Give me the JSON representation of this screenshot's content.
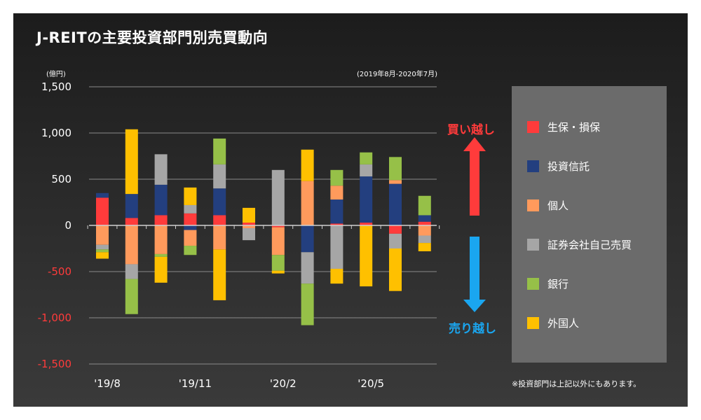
{
  "title": "J-REITの主要投資部門別売買動向",
  "unit": "(億円)",
  "period": "(2019年8月-2020年7月)",
  "buy_label": "買い越し",
  "sell_label": "売り越し",
  "note": "※投資部門は上記以外にもあります。",
  "colors": {
    "positive_tick": "#ffffff",
    "negative_tick": "#ff3b3b",
    "buy_arrow": "#ff3b3b",
    "sell_arrow": "#1aa6f0"
  },
  "legend": [
    {
      "label": "生保・損保",
      "color": "#ff3b3b"
    },
    {
      "label": "投資信託",
      "color": "#233f7f"
    },
    {
      "label": "個人",
      "color": "#ff9a5c"
    },
    {
      "label": "証券会社自己売買",
      "color": "#a6a6a6"
    },
    {
      "label": "銀行",
      "color": "#96c048"
    },
    {
      "label": "外国人",
      "color": "#ffc000"
    }
  ],
  "chart_data": {
    "type": "bar",
    "stacked": true,
    "x_tick_labels": [
      "'19/8",
      "'19/11",
      "'20/2",
      "'20/5"
    ],
    "x_tick_index": [
      0,
      3,
      6,
      9
    ],
    "y_ticks": [
      "1,500",
      "1,000",
      "500",
      "0",
      "-500",
      "-1,000",
      "-1,500"
    ],
    "ylim": [
      -1500,
      1500
    ],
    "grid": true,
    "legend_position": "right",
    "categories": [
      "2019/8",
      "2019/9",
      "2019/10",
      "2019/11",
      "2019/12",
      "2020/1",
      "2020/2",
      "2020/3",
      "2020/4",
      "2020/5",
      "2020/6",
      "2020/7"
    ],
    "series": [
      {
        "name": "生保・損保",
        "values": [
          300,
          80,
          110,
          130,
          110,
          30,
          -20,
          0,
          20,
          30,
          -90,
          40
        ]
      },
      {
        "name": "投資信託",
        "values": [
          50,
          260,
          330,
          -50,
          290,
          0,
          0,
          -290,
          260,
          500,
          450,
          70
        ]
      },
      {
        "name": "個人",
        "values": [
          -210,
          -420,
          -310,
          -170,
          -260,
          -30,
          -300,
          480,
          150,
          0,
          40,
          -110
        ]
      },
      {
        "name": "証券会社自己売買",
        "values": [
          -50,
          -160,
          330,
          90,
          260,
          -130,
          600,
          -340,
          -470,
          130,
          -160,
          -80
        ]
      },
      {
        "name": "銀行",
        "values": [
          -30,
          -380,
          -30,
          -100,
          280,
          0,
          -170,
          -450,
          170,
          130,
          250,
          210
        ]
      },
      {
        "name": "外国人",
        "values": [
          -70,
          700,
          -280,
          190,
          -550,
          160,
          -30,
          340,
          -160,
          -660,
          -460,
          -90
        ]
      }
    ]
  }
}
